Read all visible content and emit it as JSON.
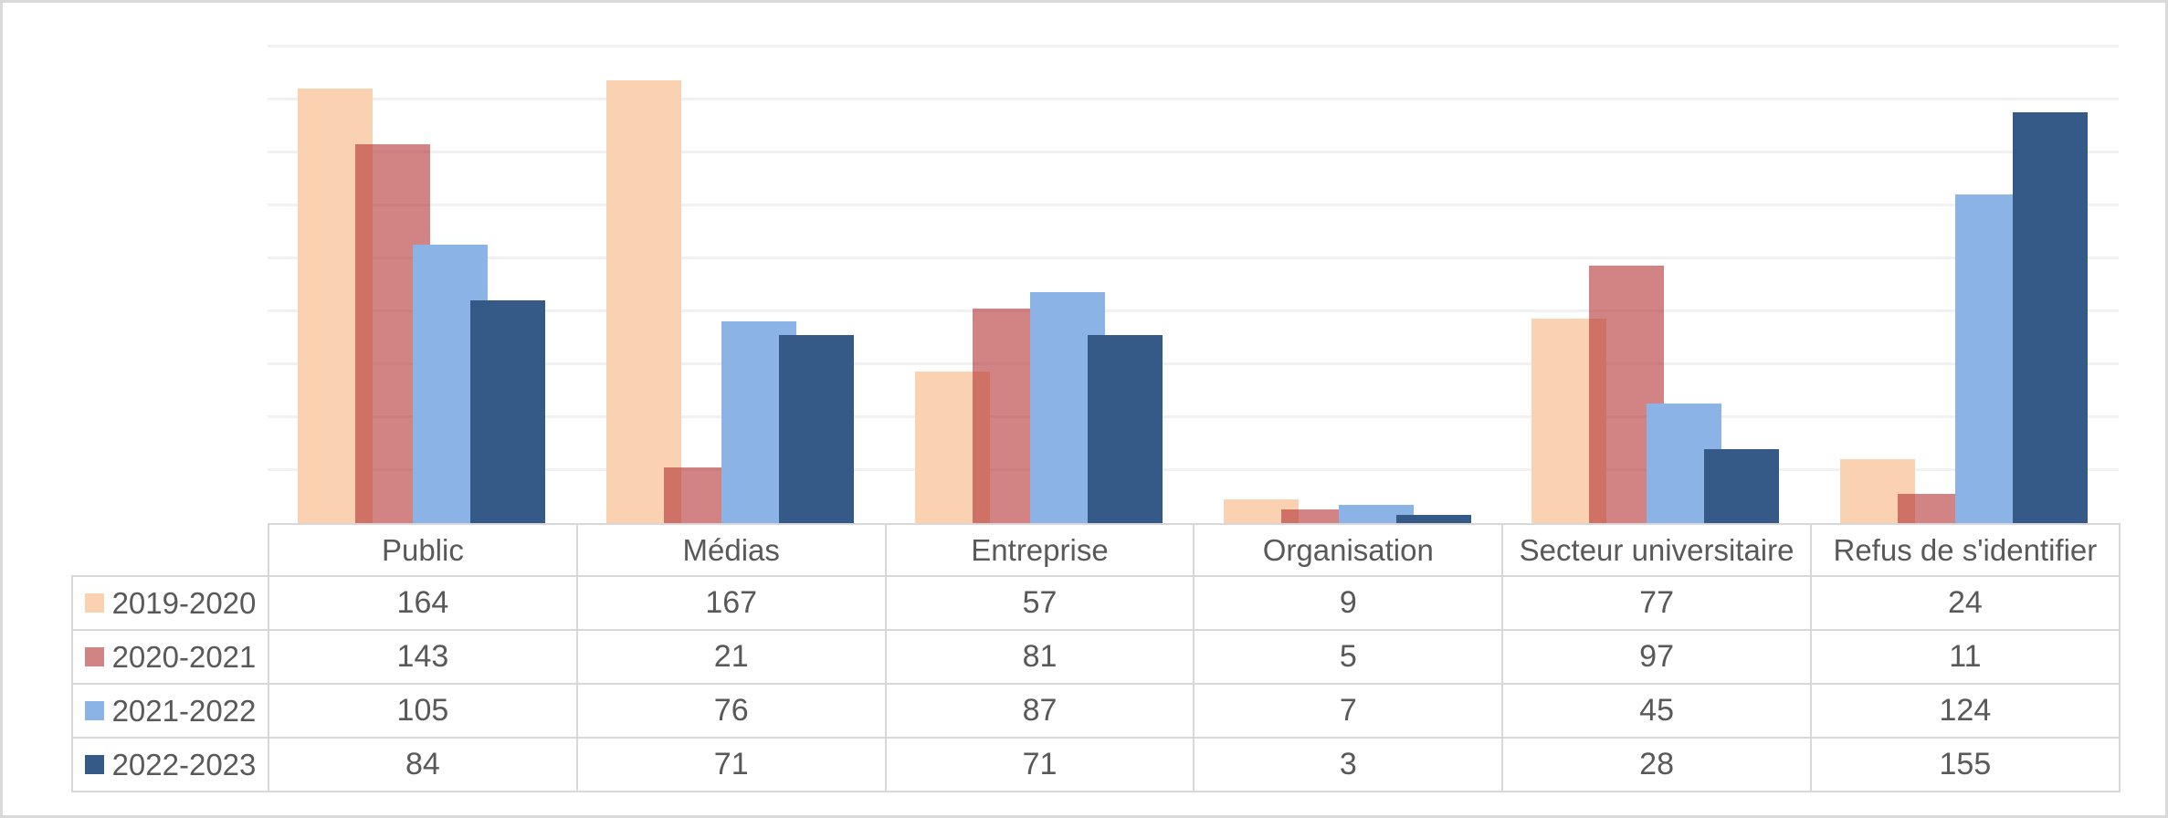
{
  "chart_data": {
    "type": "bar",
    "title": "",
    "xlabel": "",
    "ylabel": "",
    "categories": [
      "Public",
      "Médias",
      "Entreprise",
      "Organisation",
      "Secteur universitaire",
      "Refus de s'identifier"
    ],
    "series": [
      {
        "name": "2019-2020",
        "values": [
          164,
          167,
          57,
          9,
          77,
          24
        ],
        "fill": "#FAD2B1",
        "opaque": true
      },
      {
        "name": "2020-2021",
        "values": [
          143,
          21,
          81,
          5,
          97,
          11
        ],
        "fill": "rgba(180,48,50,0.6)",
        "opaque": false
      },
      {
        "name": "2021-2022",
        "values": [
          105,
          76,
          87,
          7,
          45,
          124
        ],
        "fill": "#8BB3E5",
        "opaque": true
      },
      {
        "name": "2022-2023",
        "values": [
          84,
          71,
          71,
          3,
          28,
          155
        ],
        "fill": "#355A87",
        "opaque": true
      }
    ],
    "ylim": [
      0,
      180
    ],
    "gridline_step": 20,
    "grid": true,
    "y_tick_labels_visible": false,
    "bar_overlap_percent": 25,
    "legend_position": "table-first-column",
    "colors": {
      "gridline": "#F1F1F1",
      "table_border": "#D8D8D8",
      "text": "#595959",
      "canvas_border": "#D9D9D9",
      "background": "#FFFFFF"
    }
  }
}
